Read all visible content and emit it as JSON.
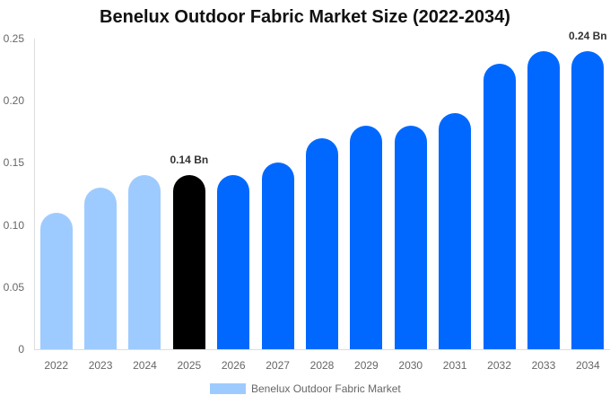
{
  "chart_data": {
    "type": "bar",
    "title": "Benelux Outdoor Fabric Market Size (2022-2034)",
    "xlabel": "",
    "ylabel": "",
    "categories": [
      "2022",
      "2023",
      "2024",
      "2025",
      "2026",
      "2027",
      "2028",
      "2029",
      "2030",
      "2031",
      "2032",
      "2033",
      "2034"
    ],
    "series": [
      {
        "name": "Benelux Outdoor Fabric Market",
        "values": [
          0.11,
          0.13,
          0.14,
          0.14,
          0.14,
          0.15,
          0.17,
          0.18,
          0.18,
          0.19,
          0.23,
          0.24,
          0.24
        ]
      }
    ],
    "ylim": [
      0,
      0.25
    ],
    "yticks": [
      "0",
      "0.05",
      "0.10",
      "0.15",
      "0.20",
      "0.25"
    ],
    "grid": false,
    "legend_position": "bottom",
    "annotations": [
      {
        "category": "2025",
        "text": "0.14 Bn"
      },
      {
        "category": "2034",
        "text": "0.24 Bn"
      }
    ],
    "colors": {
      "historical": "#9ecbff",
      "base_year": "#000000",
      "forecast": "#0068ff"
    }
  },
  "legend": {
    "label": "Benelux Outdoor Fabric Market"
  }
}
